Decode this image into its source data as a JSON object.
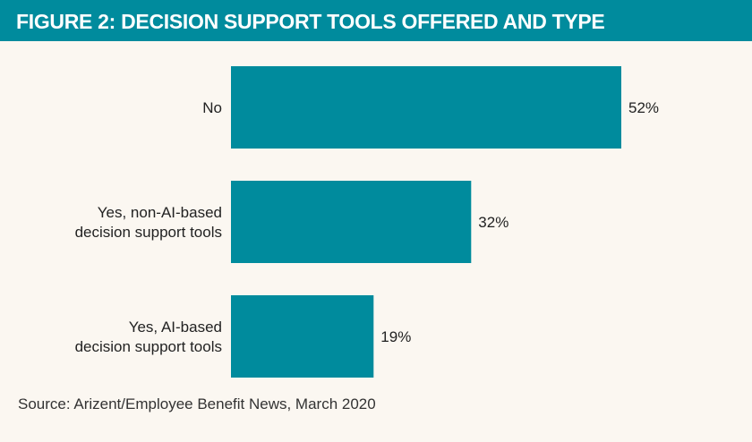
{
  "title": "FIGURE 2: DECISION SUPPORT TOOLS OFFERED AND TYPE",
  "source": "Source: Arizent/Employee Benefit News, March 2020",
  "colors": {
    "bar": "#008b9d",
    "header": "#008b9d",
    "background": "#fbf7f1"
  },
  "chart_data": {
    "type": "bar",
    "orientation": "horizontal",
    "categories": [
      [
        "No"
      ],
      [
        "Yes, non-AI-based",
        "decision support tools"
      ],
      [
        "Yes, AI-based",
        "decision support tools"
      ]
    ],
    "values": [
      52,
      32,
      19
    ],
    "value_labels": [
      "52%",
      "32%",
      "19%"
    ],
    "xlim": [
      0,
      100
    ],
    "grid": false,
    "legend": "none"
  }
}
